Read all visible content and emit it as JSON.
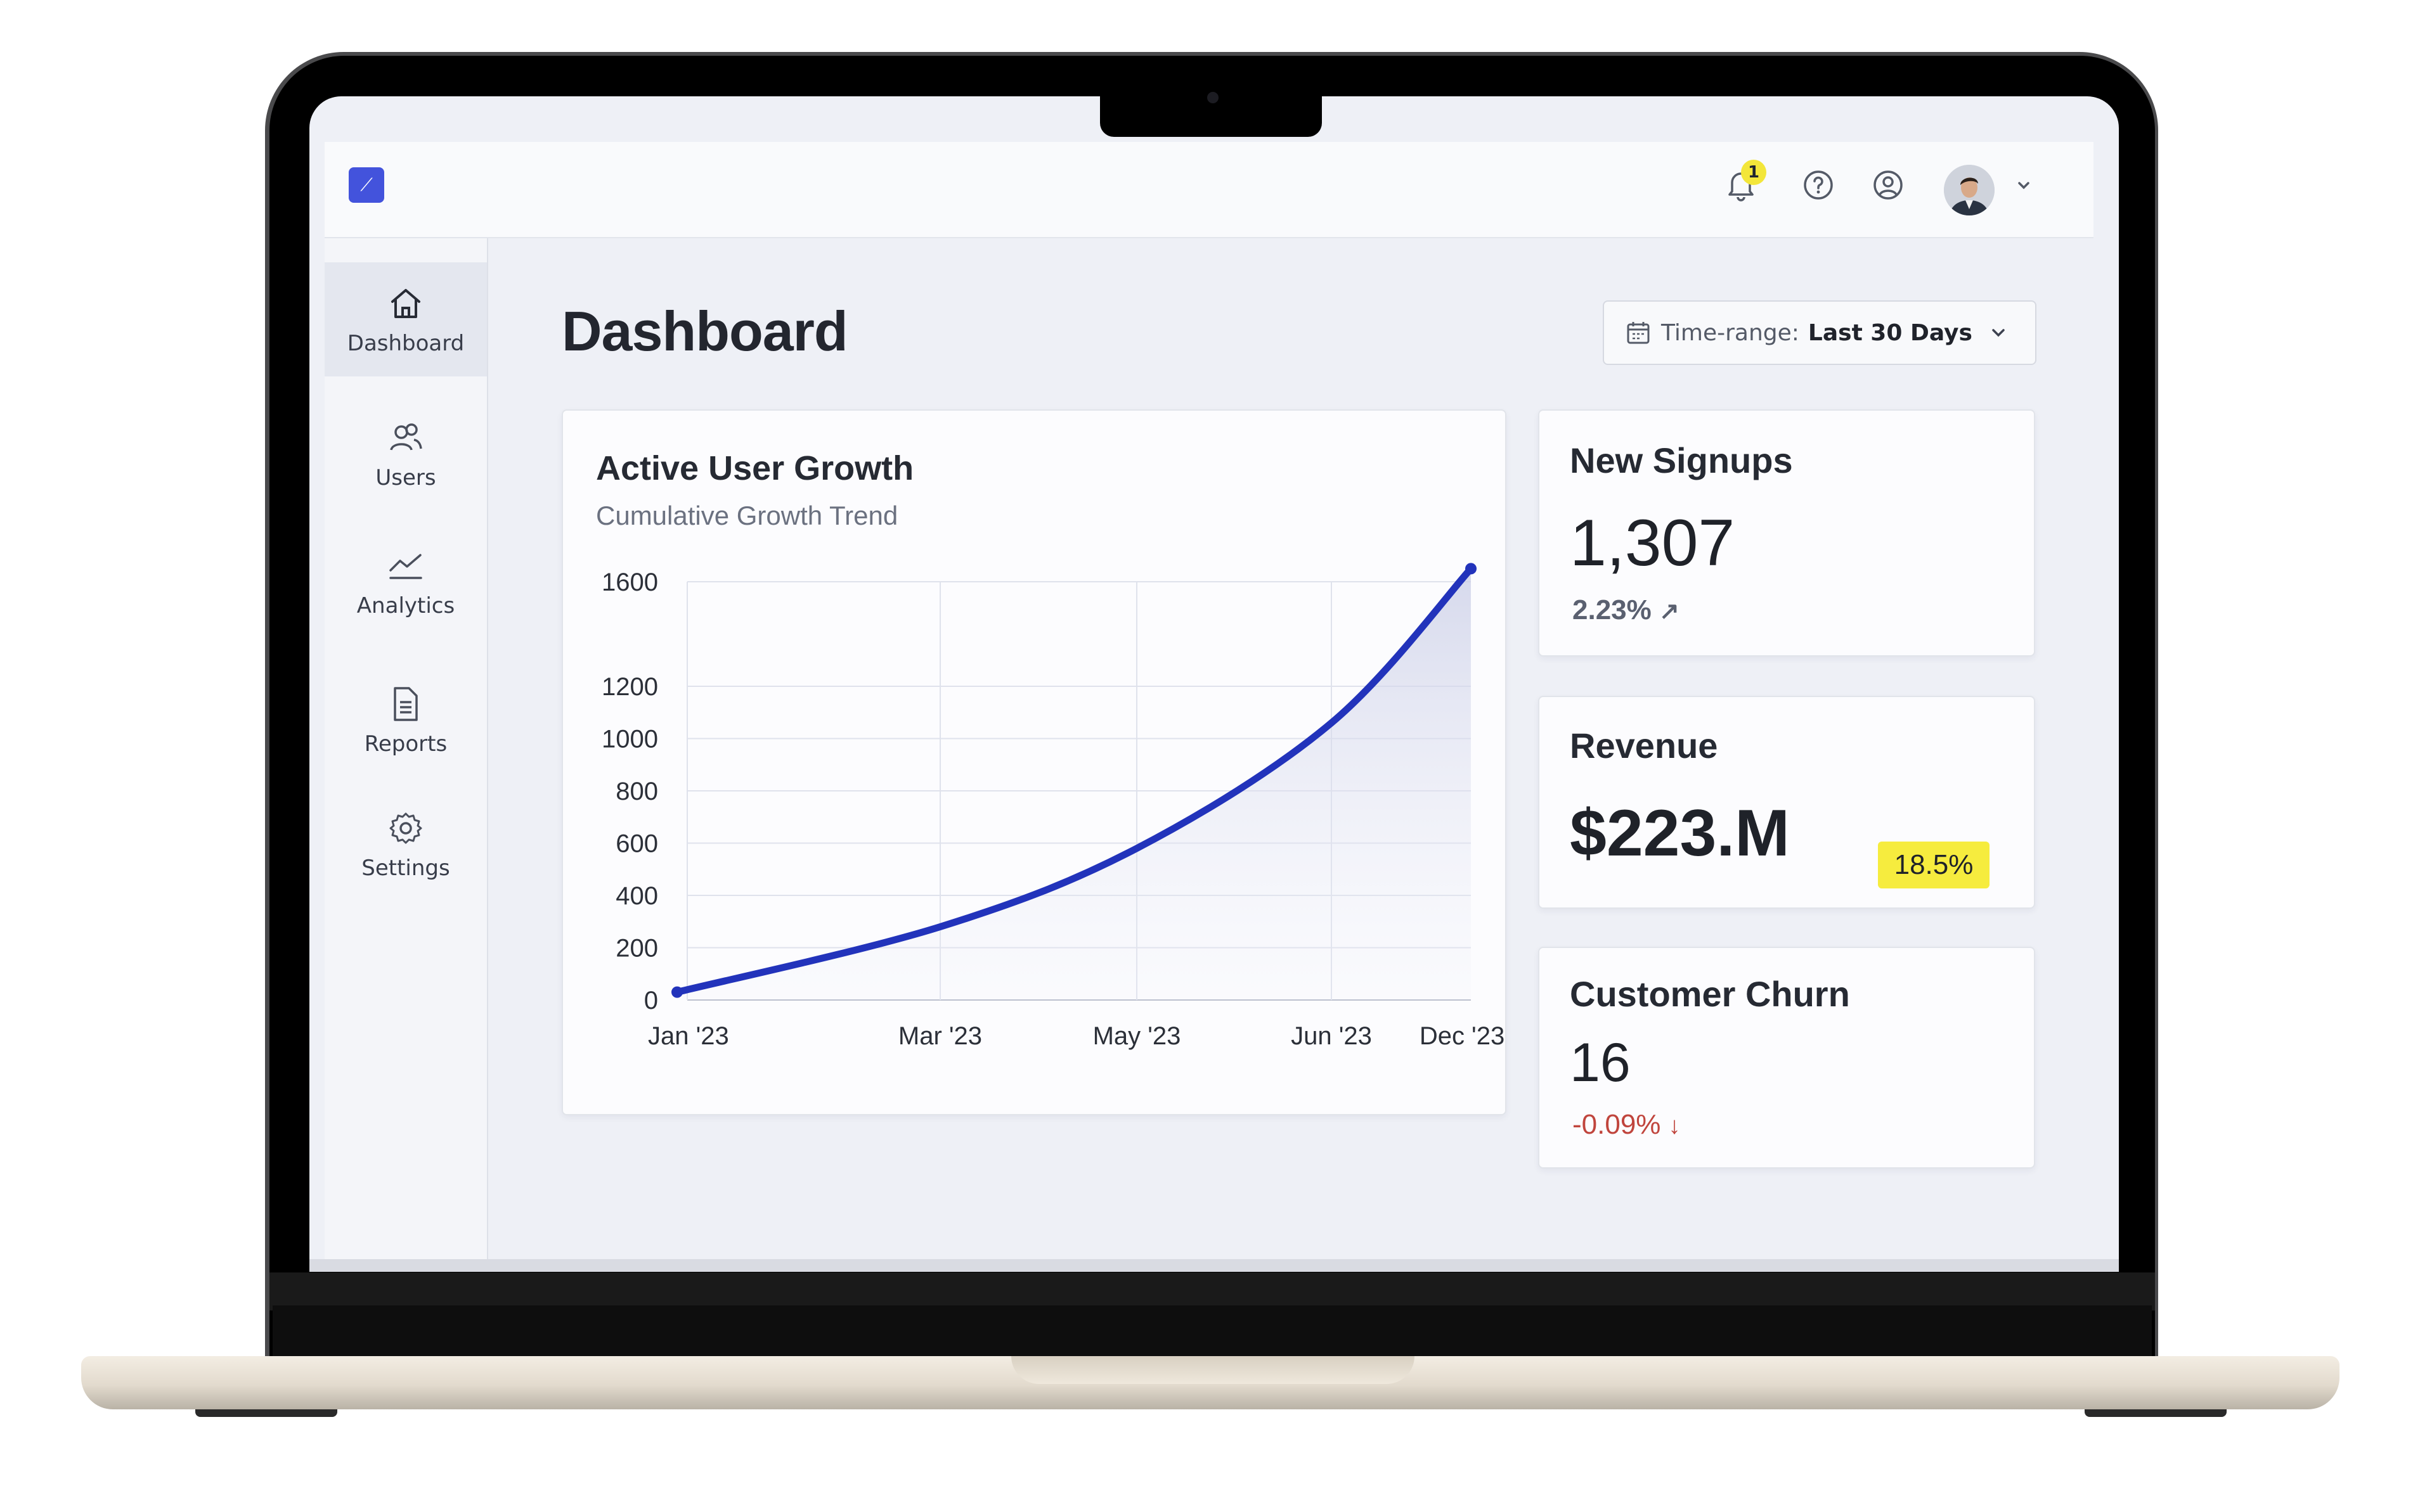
{
  "header": {
    "notification_count": "1",
    "logo_glyph": "⟋"
  },
  "sidebar": {
    "items": [
      {
        "label": "Dashboard",
        "icon": "home-icon"
      },
      {
        "label": "Users",
        "icon": "users-icon"
      },
      {
        "label": "Analytics",
        "icon": "analytics-icon"
      },
      {
        "label": "Reports",
        "icon": "document-icon"
      },
      {
        "label": "Settings",
        "icon": "gear-icon"
      }
    ]
  },
  "main": {
    "title": "Dashboard",
    "time_range": {
      "label": "Time-range:",
      "value": "Last 30 Days"
    }
  },
  "chart": {
    "title": "Active User Growth",
    "subtitle": "Cumulative Growth Trend"
  },
  "chart_data": {
    "type": "area",
    "title": "Active User Growth",
    "subtitle": "Cumulative Growth Trend",
    "xlabel": "",
    "ylabel": "",
    "ylim": [
      0,
      1600
    ],
    "y_ticks": [
      "0",
      "200",
      "400",
      "600",
      "800",
      "1000",
      "1200",
      "1600"
    ],
    "x_ticks": [
      "Jan '23",
      "Mar '23",
      "May '23",
      "Jun '23",
      "Dec '23"
    ],
    "grid": true,
    "line_color": "#2233bb",
    "series": [
      {
        "values": [
          {
            "x": "Jan '23",
            "y": 30
          },
          {
            "x": "Mar '23",
            "y": 280
          },
          {
            "x": "May '23",
            "y": 580
          },
          {
            "x": "Jun '23",
            "y": 1060
          },
          {
            "x": "Dec '23",
            "y": 1650
          }
        ]
      }
    ]
  },
  "kpis": {
    "signups": {
      "title": "New Signups",
      "value": "1,307",
      "delta": "2.23%",
      "delta_arrow": "↗"
    },
    "revenue": {
      "title": "Revenue",
      "value": "$223.M",
      "badge": "18.5%"
    },
    "churn": {
      "title": "Customer Churn",
      "value": "16",
      "delta": "-0.09%",
      "delta_arrow": "↓"
    }
  },
  "colors": {
    "accent": "#4353dc",
    "line": "#2233bb",
    "positive": "#5a6070",
    "negative": "#c0453d",
    "highlight": "#f6ec3e"
  }
}
